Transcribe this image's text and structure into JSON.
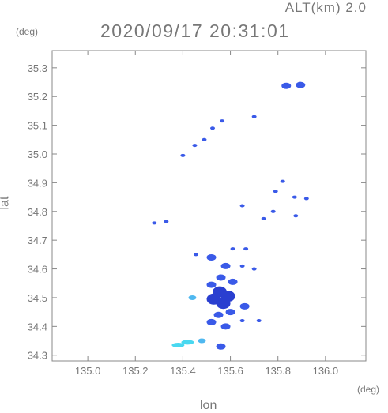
{
  "header": {
    "altitude": "ALT(km) 2.0",
    "timestamp": "2020/09/17 20:31:01"
  },
  "chart_data": {
    "type": "scatter",
    "title": "2020/09/17 20:31:01",
    "subtitle": "ALT(km) 2.0",
    "xlabel": "lon",
    "ylabel": "lat",
    "x_unit": "(deg)",
    "y_unit": "(deg)",
    "xlim": [
      134.85,
      136.17
    ],
    "ylim": [
      34.28,
      35.36
    ],
    "x_ticks": [
      135.0,
      135.2,
      135.4,
      135.6,
      135.8,
      136.0
    ],
    "x_tick_labels": [
      "135.0",
      "135.2",
      "135.4",
      "135.6",
      "135.8",
      "136.0"
    ],
    "y_ticks": [
      34.3,
      34.4,
      34.5,
      34.6,
      34.7,
      34.8,
      34.9,
      35.0,
      35.1,
      35.2,
      35.3
    ],
    "y_tick_labels": [
      "34.3",
      "34.4",
      "34.5",
      "34.6",
      "34.7",
      "34.8",
      "34.9",
      "35.0",
      "35.1",
      "35.2",
      "35.3"
    ],
    "grid": false,
    "colors": {
      "echo_main": "#3a5ae8",
      "echo_dark": "#2a3fd0",
      "echo_light": "#4fb8f0",
      "echo_cyan": "#49d8f0"
    },
    "series": [
      {
        "values": [
          {
            "lon": 135.835,
            "lat": 35.237,
            "intensity": "medium"
          },
          {
            "lon": 135.895,
            "lat": 35.24,
            "intensity": "medium"
          },
          {
            "lon": 135.7,
            "lat": 35.13,
            "intensity": "weak"
          },
          {
            "lon": 135.565,
            "lat": 35.115,
            "intensity": "weak"
          },
          {
            "lon": 135.525,
            "lat": 35.09,
            "intensity": "weak"
          },
          {
            "lon": 135.49,
            "lat": 35.05,
            "intensity": "weak"
          },
          {
            "lon": 135.45,
            "lat": 35.03,
            "intensity": "weak"
          },
          {
            "lon": 135.4,
            "lat": 34.995,
            "intensity": "weak"
          },
          {
            "lon": 135.65,
            "lat": 34.82,
            "intensity": "weak"
          },
          {
            "lon": 135.79,
            "lat": 34.87,
            "intensity": "weak"
          },
          {
            "lon": 135.82,
            "lat": 34.905,
            "intensity": "weak"
          },
          {
            "lon": 135.87,
            "lat": 34.85,
            "intensity": "weak"
          },
          {
            "lon": 135.92,
            "lat": 34.845,
            "intensity": "weak"
          },
          {
            "lon": 135.78,
            "lat": 34.8,
            "intensity": "weak"
          },
          {
            "lon": 135.74,
            "lat": 34.775,
            "intensity": "weak"
          },
          {
            "lon": 135.875,
            "lat": 34.785,
            "intensity": "weak"
          },
          {
            "lon": 135.33,
            "lat": 34.765,
            "intensity": "weak"
          },
          {
            "lon": 135.28,
            "lat": 34.76,
            "intensity": "weak"
          },
          {
            "lon": 135.665,
            "lat": 34.67,
            "intensity": "weak"
          },
          {
            "lon": 135.61,
            "lat": 34.67,
            "intensity": "weak"
          },
          {
            "lon": 135.455,
            "lat": 34.65,
            "intensity": "weak"
          },
          {
            "lon": 135.52,
            "lat": 34.64,
            "intensity": "medium"
          },
          {
            "lon": 135.58,
            "lat": 34.61,
            "intensity": "medium"
          },
          {
            "lon": 135.65,
            "lat": 34.61,
            "intensity": "weak"
          },
          {
            "lon": 135.7,
            "lat": 34.6,
            "intensity": "weak"
          },
          {
            "lon": 135.56,
            "lat": 34.57,
            "intensity": "medium"
          },
          {
            "lon": 135.61,
            "lat": 34.555,
            "intensity": "medium"
          },
          {
            "lon": 135.52,
            "lat": 34.545,
            "intensity": "medium"
          },
          {
            "lon": 135.555,
            "lat": 34.52,
            "intensity": "strong"
          },
          {
            "lon": 135.59,
            "lat": 34.505,
            "intensity": "strong"
          },
          {
            "lon": 135.53,
            "lat": 34.495,
            "intensity": "strong"
          },
          {
            "lon": 135.57,
            "lat": 34.48,
            "intensity": "strong"
          },
          {
            "lon": 135.44,
            "lat": 34.5,
            "intensity": "light"
          },
          {
            "lon": 135.66,
            "lat": 34.47,
            "intensity": "medium"
          },
          {
            "lon": 135.6,
            "lat": 34.45,
            "intensity": "medium"
          },
          {
            "lon": 135.55,
            "lat": 34.44,
            "intensity": "medium"
          },
          {
            "lon": 135.52,
            "lat": 34.415,
            "intensity": "medium"
          },
          {
            "lon": 135.58,
            "lat": 34.4,
            "intensity": "medium"
          },
          {
            "lon": 135.65,
            "lat": 34.42,
            "intensity": "weak"
          },
          {
            "lon": 135.72,
            "lat": 34.42,
            "intensity": "weak"
          },
          {
            "lon": 135.48,
            "lat": 34.35,
            "intensity": "light"
          },
          {
            "lon": 135.42,
            "lat": 34.345,
            "intensity": "cyan"
          },
          {
            "lon": 135.38,
            "lat": 34.335,
            "intensity": "cyan"
          },
          {
            "lon": 135.56,
            "lat": 34.33,
            "intensity": "medium"
          }
        ]
      }
    ]
  }
}
